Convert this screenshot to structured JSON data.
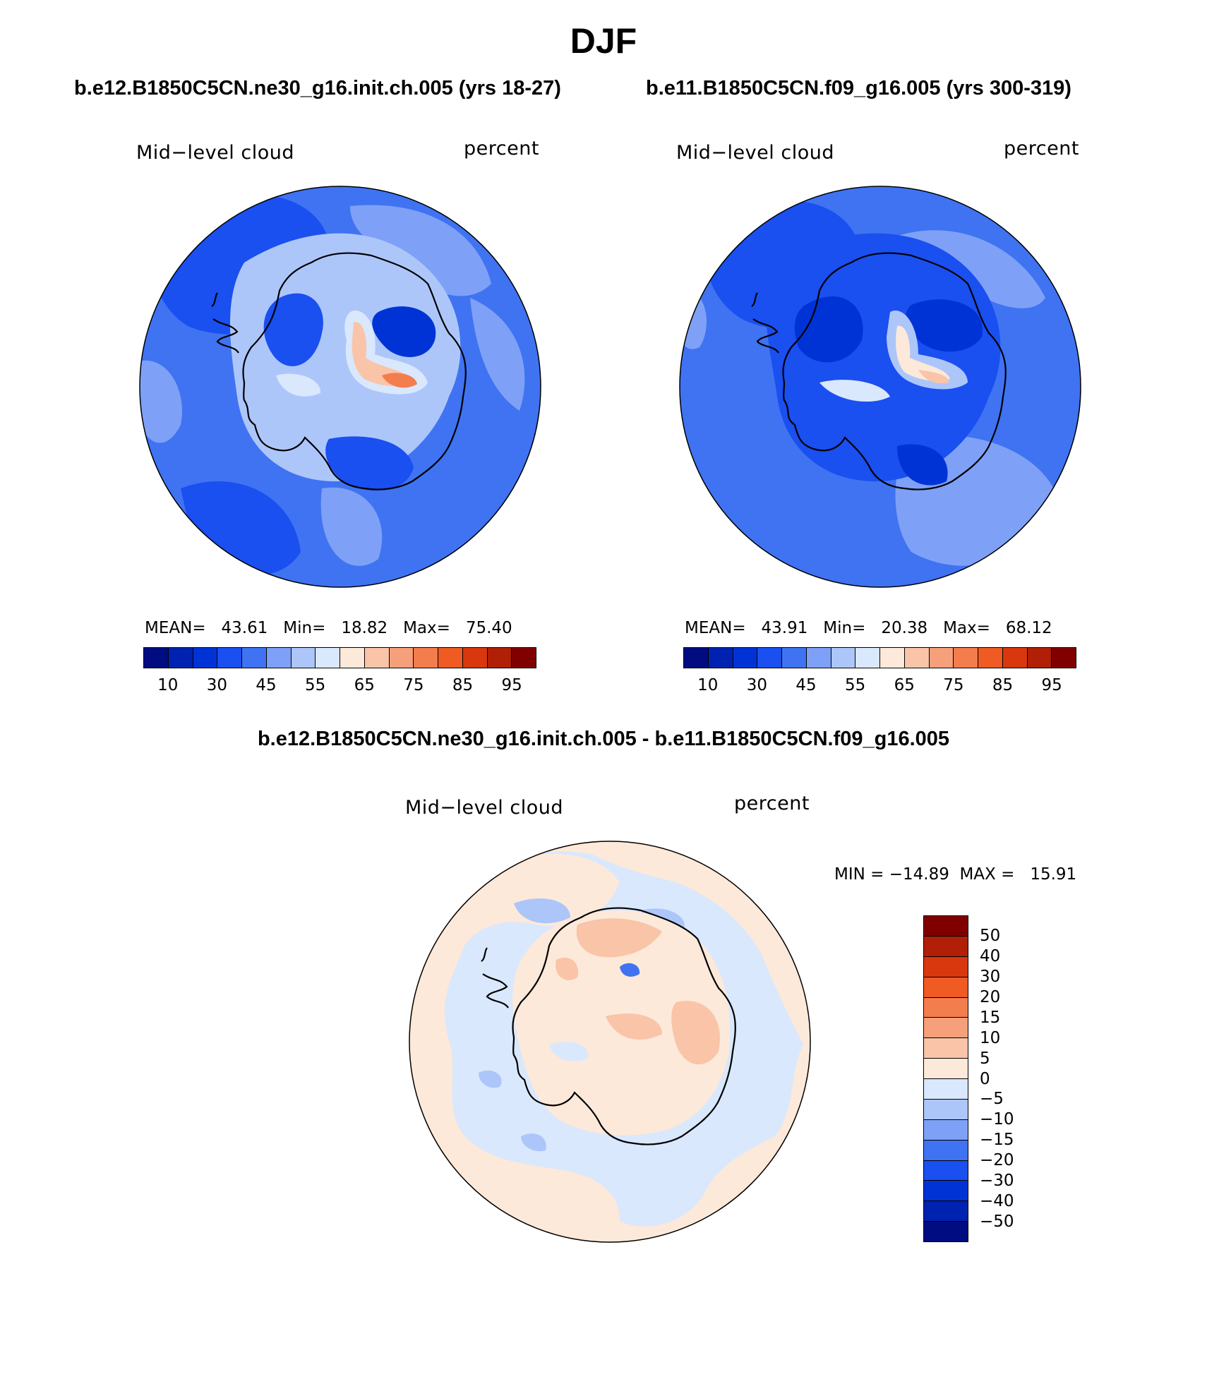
{
  "figure": {
    "title": "DJF",
    "left_run": "b.e12.B1850C5CN.ne30_g16.init.ch.005 (yrs 18-27)",
    "right_run": "b.e11.B1850C5CN.f09_g16.005 (yrs 300-319)",
    "diff_title": "b.e12.B1850C5CN.ne30_g16.init.ch.005 - b.e11.B1850C5CN.f09_g16.005"
  },
  "panels": {
    "left": {
      "variable": "Mid−level cloud",
      "units": "percent",
      "stats": "MEAN=   43.61   Min=   18.82   Max=   75.40"
    },
    "right": {
      "variable": "Mid−level cloud",
      "units": "percent",
      "stats": "MEAN=   43.91   Min=   20.38   Max=   68.12"
    },
    "diff": {
      "variable": "Mid−level cloud",
      "units": "percent",
      "stats": "MIN = −14.89  MAX =   15.91"
    }
  },
  "colorbar_abs": {
    "colors": [
      "#000c80",
      "#0022b0",
      "#0033d6",
      "#1a4ff0",
      "#3f73f2",
      "#7ea1f7",
      "#adc6fa",
      "#d9e8fc",
      "#fde9d9",
      "#f9c4a8",
      "#f6a07b",
      "#f47d4e",
      "#f05a23",
      "#d9370e",
      "#b01f06",
      "#800000"
    ],
    "labels": [
      "10",
      "30",
      "45",
      "55",
      "65",
      "75",
      "85",
      "95"
    ]
  },
  "colorbar_diff": {
    "colors": [
      "#800000",
      "#b01f06",
      "#d9370e",
      "#f05a23",
      "#f47d4e",
      "#f6a07b",
      "#f9c4a8",
      "#fde9d9",
      "#d9e8fc",
      "#adc6fa",
      "#7ea1f7",
      "#3f73f2",
      "#1a4ff0",
      "#0033d6",
      "#0022b0",
      "#000c80"
    ],
    "labels": [
      "50",
      "40",
      "30",
      "20",
      "15",
      "10",
      "5",
      "0",
      "−5",
      "−10",
      "−15",
      "−20",
      "−30",
      "−40",
      "−50"
    ]
  }
}
